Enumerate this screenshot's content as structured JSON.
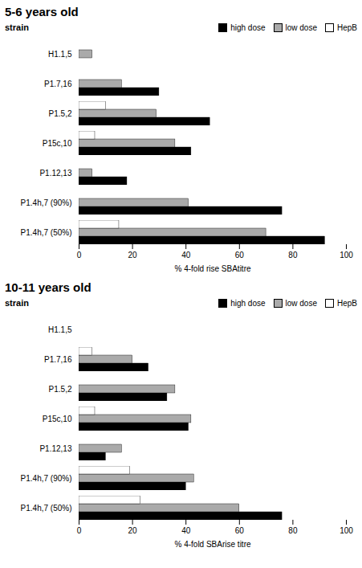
{
  "chart_data": [
    {
      "type": "bar",
      "orientation": "horizontal",
      "title": "5-6 years old",
      "categories": [
        "H1.1,5",
        "P1.7,16",
        "P1.5,2",
        "P15c,10",
        "P1.12,13",
        "P1.4h,7 (90%)",
        "P1.4h,7 (50%)"
      ],
      "series": [
        {
          "name": "high dose",
          "color": "#000000",
          "values": [
            0,
            30,
            49,
            42,
            18,
            76,
            92
          ]
        },
        {
          "name": "low dose",
          "color": "#aaaaaa",
          "values": [
            5,
            16,
            29,
            36,
            5,
            41,
            70
          ]
        },
        {
          "name": "HepB",
          "color": "#ffffff",
          "values": [
            0,
            0,
            10,
            6,
            0,
            0,
            15
          ]
        }
      ],
      "xlabel": "% 4-fold rise SBAtitre",
      "ylabel": "strain",
      "xlim": [
        0,
        100
      ],
      "xticks": [
        0,
        20,
        40,
        60,
        80,
        100
      ],
      "grid": false,
      "legend": "upper right"
    },
    {
      "type": "bar",
      "orientation": "horizontal",
      "title": "10-11 years old",
      "categories": [
        "H1.1,5",
        "P1.7,16",
        "P1.5,2",
        "P15c,10",
        "P1.12,13",
        "P1.4h,7 (90%)",
        "P1.4h,7 (50%)"
      ],
      "series": [
        {
          "name": "high dose",
          "color": "#000000",
          "values": [
            0,
            26,
            33,
            41,
            10,
            40,
            76
          ]
        },
        {
          "name": "low dose",
          "color": "#aaaaaa",
          "values": [
            0,
            20,
            36,
            42,
            16,
            43,
            60
          ]
        },
        {
          "name": "HepB",
          "color": "#ffffff",
          "values": [
            0,
            5,
            0,
            6,
            0,
            19,
            23
          ]
        }
      ],
      "xlabel": "% 4-fold SBArise titre",
      "ylabel": "strain",
      "xlim": [
        0,
        100
      ],
      "xticks": [
        0,
        20,
        40,
        60,
        80,
        100
      ],
      "grid": false,
      "legend": "upper right"
    }
  ]
}
